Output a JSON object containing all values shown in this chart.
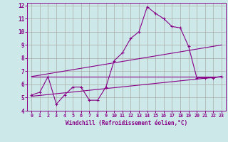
{
  "xlabel": "Windchill (Refroidissement éolien,°C)",
  "background_color": "#cce8e8",
  "grid_color": "#aaaaaa",
  "line_color": "#880088",
  "xlim": [
    -0.5,
    23.5
  ],
  "ylim": [
    4,
    12.2
  ],
  "xticks": [
    0,
    1,
    2,
    3,
    4,
    5,
    6,
    7,
    8,
    9,
    10,
    11,
    12,
    13,
    14,
    15,
    16,
    17,
    18,
    19,
    20,
    21,
    22,
    23
  ],
  "yticks": [
    4,
    5,
    6,
    7,
    8,
    9,
    10,
    11,
    12
  ],
  "line1_x": [
    0,
    1,
    2,
    3,
    4,
    5,
    6,
    7,
    8,
    9,
    10,
    11,
    12,
    13,
    14,
    15,
    16,
    17,
    18,
    19,
    20,
    21,
    22,
    23
  ],
  "line1_y": [
    5.2,
    5.4,
    6.6,
    4.5,
    5.2,
    5.8,
    5.8,
    4.8,
    4.8,
    5.8,
    7.8,
    8.4,
    9.5,
    10.0,
    11.9,
    11.4,
    11.0,
    10.4,
    10.3,
    8.9,
    6.5,
    6.5,
    6.5,
    6.6
  ],
  "line2_x": [
    0,
    23
  ],
  "line2_y": [
    6.6,
    6.6
  ],
  "line3_x": [
    0,
    23
  ],
  "line3_y": [
    6.6,
    9.0
  ],
  "line4_x": [
    0,
    23
  ],
  "line4_y": [
    5.1,
    6.6
  ],
  "marker": "+"
}
